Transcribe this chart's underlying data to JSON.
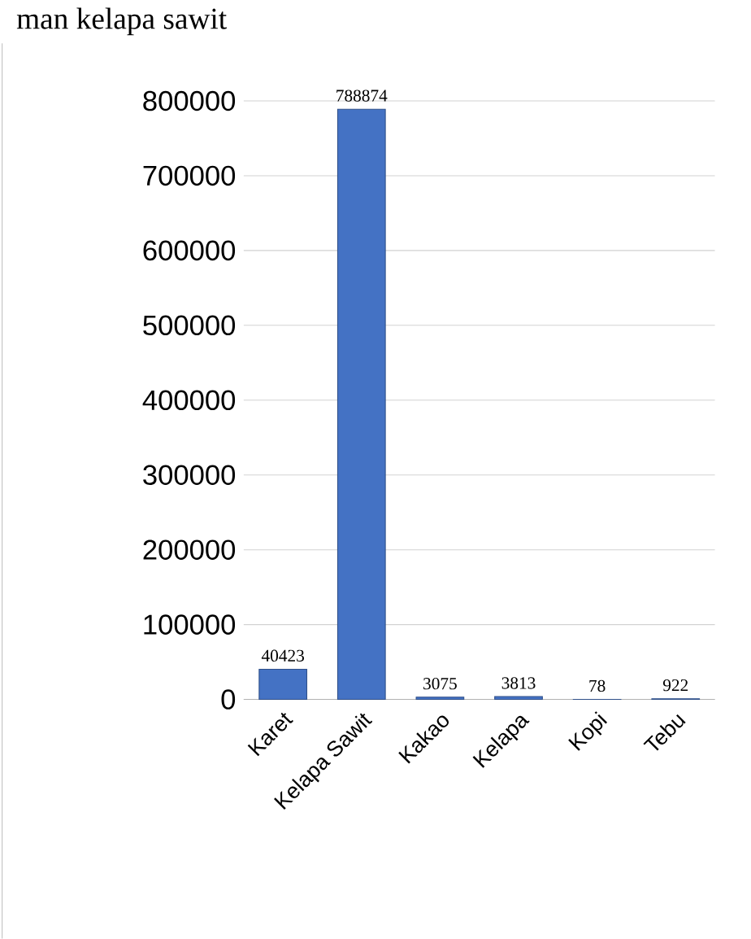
{
  "chart_data": {
    "type": "bar",
    "title": "man kelapa sawit",
    "categories": [
      "Karet",
      "Kelapa Sawit",
      "Kakao",
      "Kelapa",
      "Kopi",
      "Tebu"
    ],
    "values": [
      40423,
      788874,
      3075,
      3813,
      78,
      922
    ],
    "color": "#4472c4",
    "data_labels": true,
    "grid": "y",
    "ylim": [
      0,
      800000
    ],
    "yticks": [
      0,
      100000,
      200000,
      300000,
      400000,
      500000,
      600000,
      700000,
      800000
    ]
  }
}
